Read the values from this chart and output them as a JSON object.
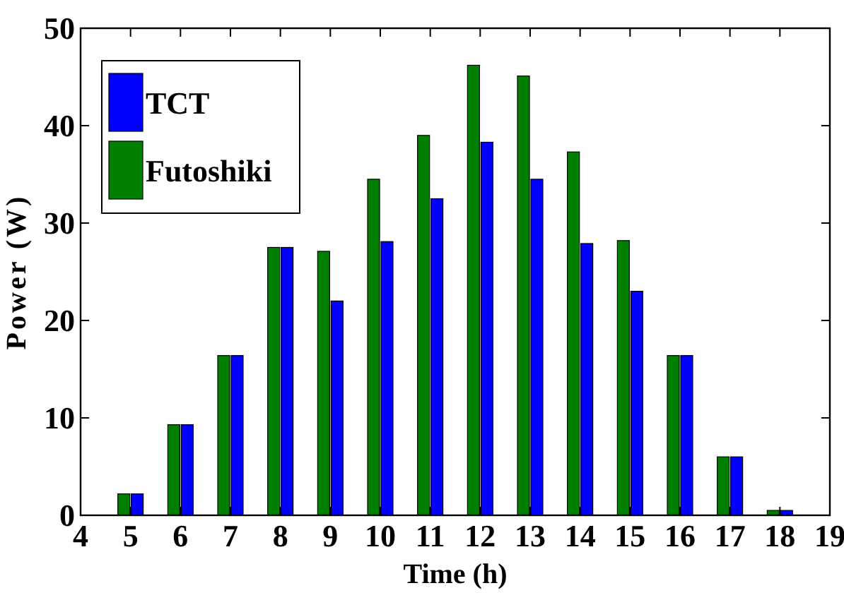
{
  "chart_data": {
    "type": "bar",
    "xlabel": "Time (h)",
    "ylabel": "Power (W)",
    "x": [
      5,
      6,
      7,
      8,
      9,
      10,
      11,
      12,
      13,
      14,
      15,
      16,
      17,
      18
    ],
    "series": [
      {
        "name": "TCT",
        "color": "#0000ff",
        "values": [
          2.2,
          9.3,
          16.4,
          27.5,
          22,
          28.1,
          32.5,
          38.3,
          34.5,
          27.9,
          23,
          16.4,
          6,
          0.5
        ]
      },
      {
        "name": "Futoshiki",
        "color": "#007f00",
        "values": [
          2.2,
          9.3,
          16.4,
          27.5,
          27.1,
          34.5,
          39,
          46.2,
          45.1,
          37.3,
          28.2,
          16.4,
          6,
          0.5
        ]
      }
    ],
    "xlim": [
      4,
      19
    ],
    "xticks": [
      4,
      5,
      6,
      7,
      8,
      9,
      10,
      11,
      12,
      13,
      14,
      15,
      16,
      17,
      18,
      19
    ],
    "ylim": [
      0,
      50
    ],
    "yticks": [
      0,
      10,
      20,
      30,
      40,
      50
    ],
    "grid": false,
    "legend": "top left"
  }
}
